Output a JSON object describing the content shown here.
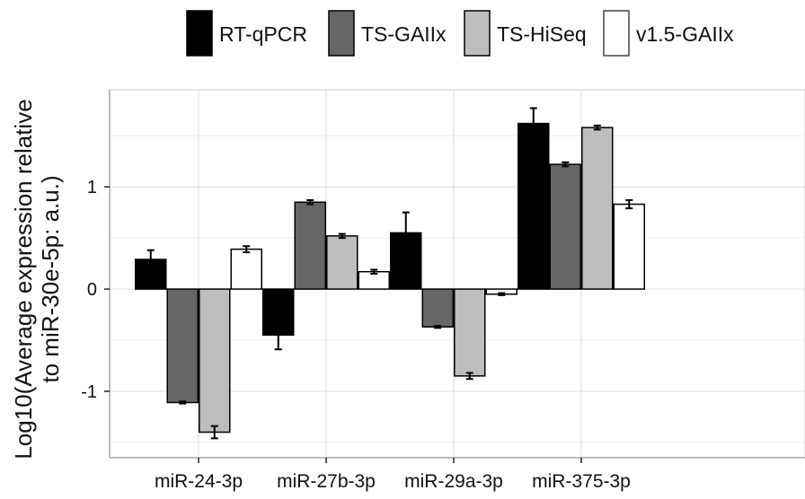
{
  "chart_data": {
    "type": "bar",
    "ylabel_line1": "Log10(Average  expression relative",
    "ylabel_line2": "to miR-30e-5p: a.u.)",
    "xlabel": "",
    "categories": [
      "miR-24-3p",
      "miR-27b-3p",
      "miR-29a-3p",
      "miR-375-3p"
    ],
    "series": [
      {
        "name": "RT-qPCR",
        "color": "#000000",
        "values": [
          0.29,
          -0.45,
          0.55,
          1.62
        ],
        "errors": [
          0.09,
          0.14,
          0.2,
          0.15
        ]
      },
      {
        "name": "TS-GAIIx",
        "color": "#666666",
        "values": [
          -1.11,
          0.85,
          -0.37,
          1.22
        ],
        "errors": [
          0.01,
          0.02,
          0.01,
          0.02
        ]
      },
      {
        "name": "TS-HiSeq",
        "color": "#bdbdbd",
        "values": [
          -1.4,
          0.52,
          -0.85,
          1.58
        ],
        "errors": [
          0.06,
          0.02,
          0.03,
          0.02
        ]
      },
      {
        "name": "v1.5-GAIIx",
        "color": "#ffffff",
        "values": [
          0.39,
          0.17,
          -0.05,
          0.83
        ],
        "errors": [
          0.03,
          0.02,
          0.01,
          0.04
        ]
      }
    ],
    "yticks": [
      -1,
      0,
      1
    ],
    "ylim": [
      -1.65,
      1.95
    ],
    "grid": true,
    "legend_position": "top"
  }
}
